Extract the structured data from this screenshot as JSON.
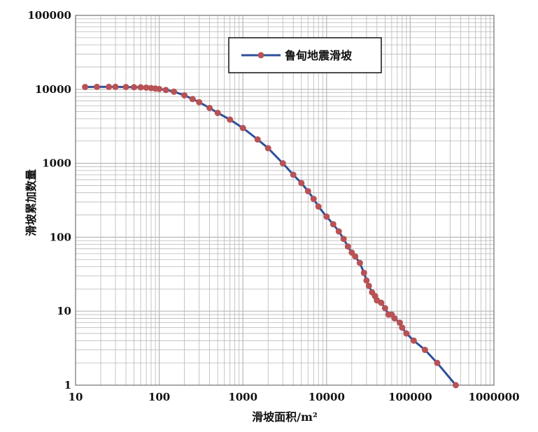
{
  "chart_data": {
    "type": "line",
    "title": "",
    "xlabel": "滑坡面积/m²",
    "ylabel": "滑坡累加数量",
    "xscale": "log",
    "yscale": "log",
    "xlim": [
      10,
      1000000
    ],
    "ylim": [
      1,
      100000
    ],
    "grid": true,
    "legend_position": "top-center",
    "x_ticks": [
      "10",
      "100",
      "1000",
      "10000",
      "100000",
      "1000000"
    ],
    "y_ticks": [
      "1",
      "10",
      "100",
      "1000",
      "10000",
      "100000"
    ],
    "colors": {
      "line": "#2e4f9c",
      "marker": "#b85255",
      "grid": "#b8b8b8"
    },
    "series": [
      {
        "name": "鲁甸地震滑坡",
        "x": [
          13,
          18,
          25,
          30,
          40,
          50,
          60,
          70,
          80,
          90,
          100,
          120,
          150,
          200,
          250,
          300,
          400,
          500,
          700,
          1000,
          1500,
          2000,
          3000,
          4000,
          5000,
          6000,
          7000,
          8000,
          10000,
          12000,
          14000,
          16000,
          18000,
          20000,
          22000,
          25000,
          28000,
          30000,
          32000,
          35000,
          38000,
          40000,
          45000,
          50000,
          55000,
          60000,
          65000,
          75000,
          80000,
          90000,
          110000,
          150000,
          210000,
          350000
        ],
        "y": [
          10750,
          10800,
          10800,
          10800,
          10750,
          10700,
          10650,
          10550,
          10400,
          10250,
          10100,
          9800,
          9300,
          8300,
          7400,
          6700,
          5600,
          4800,
          3900,
          3000,
          2100,
          1600,
          1000,
          700,
          540,
          420,
          330,
          260,
          190,
          150,
          120,
          95,
          75,
          62,
          55,
          45,
          33,
          26,
          22,
          18,
          16,
          14,
          13,
          11,
          9,
          9,
          8,
          7,
          6,
          5,
          4,
          3,
          2,
          1
        ]
      }
    ]
  }
}
